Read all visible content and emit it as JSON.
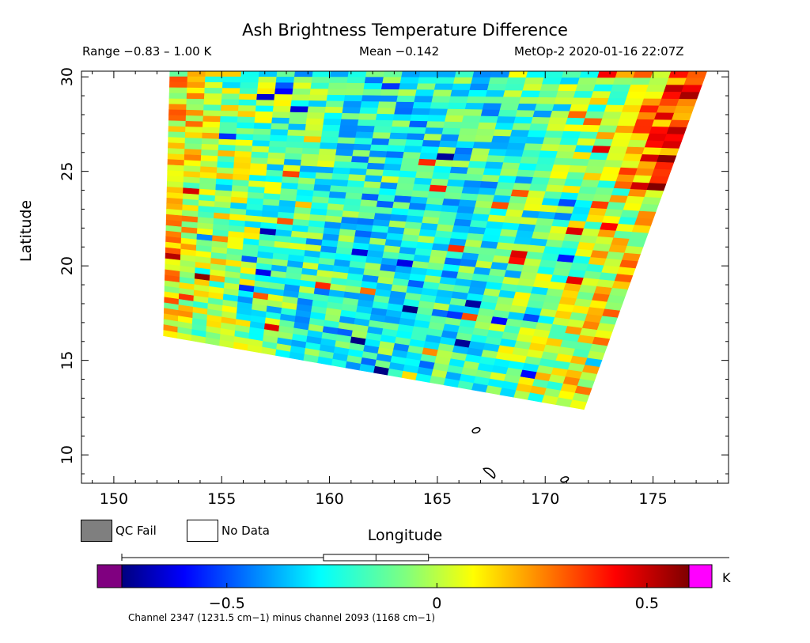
{
  "header": {
    "title": "Ash Brightness Temperature Difference",
    "range": "Range −0.83 – 1.00 K",
    "mean": "Mean −0.142",
    "satellite": "MetOp-2 2020-01-16 22:07Z"
  },
  "legend": {
    "qc_fail": "QC Fail",
    "no_data": "No Data",
    "qc_fail_color": "#7f7f7f",
    "no_data_color": "#ffffff"
  },
  "colorbar": {
    "caption": "Channel 2347 (1231.5 cm−1) minus channel 2093 (1168 cm−1)",
    "unit": "K",
    "min": -0.75,
    "max": 0.6,
    "ticks": [
      -0.5,
      0,
      0.5
    ],
    "tick_labels": [
      "−0.5",
      "0",
      "0.5"
    ],
    "under_color": "#800080",
    "over_color": "#ff00ff",
    "range_marker": [
      -0.27,
      -0.02
    ]
  },
  "chart_data": {
    "type": "heatmap",
    "title": "Ash Brightness Temperature Difference",
    "xlabel": "Longitude",
    "ylabel": "Latitude",
    "xlim": [
      148.5,
      178.5
    ],
    "ylim": [
      8.5,
      30.3
    ],
    "xticks": [
      150,
      155,
      160,
      165,
      170,
      175
    ],
    "yticks": [
      10,
      15,
      20,
      25,
      30
    ],
    "swath_corners": {
      "top_left": [
        152.6,
        30.3
      ],
      "top_right": [
        177.5,
        30.3
      ],
      "bottom_right": [
        171.8,
        12.4
      ],
      "bottom_left": [
        152.3,
        16.3
      ]
    },
    "value_range": [
      -0.83,
      1.0
    ],
    "mean": -0.142,
    "islands": [
      {
        "lon": 166.8,
        "lat": 11.3
      },
      {
        "lon": 167.4,
        "lat": 9.1
      },
      {
        "lon": 170.9,
        "lat": 8.7
      }
    ]
  }
}
